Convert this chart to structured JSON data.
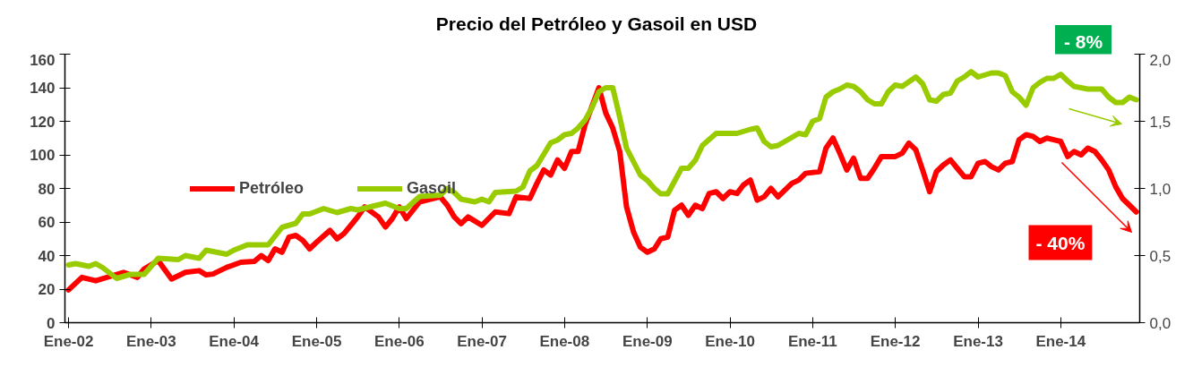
{
  "chart_data": {
    "type": "line",
    "title": "Precio del Petróleo y Gasoil en USD",
    "xlim": [
      "2001-12-16",
      "2014-12-16"
    ],
    "xticks": [
      {
        "value": "2002-01",
        "label": "Ene-02"
      },
      {
        "value": "2003-01",
        "label": "Ene-03"
      },
      {
        "value": "2004-01",
        "label": "Ene-04"
      },
      {
        "value": "2005-01",
        "label": "Ene-05"
      },
      {
        "value": "2006-01",
        "label": "Ene-06"
      },
      {
        "value": "2007-01",
        "label": "Ene-07"
      },
      {
        "value": "2008-01",
        "label": "Ene-08"
      },
      {
        "value": "2009-01",
        "label": "Ene-09"
      },
      {
        "value": "2010-01",
        "label": "Ene-10"
      },
      {
        "value": "2011-01",
        "label": "Ene-11"
      },
      {
        "value": "2012-01",
        "label": "Ene-12"
      },
      {
        "value": "2013-01",
        "label": "Ene-13"
      },
      {
        "value": "2014-01",
        "label": "Ene-14"
      }
    ],
    "ylim": [
      0,
      160
    ],
    "yticks": [
      0,
      20,
      40,
      60,
      80,
      100,
      120,
      140,
      160
    ],
    "y2lim": [
      0,
      2
    ],
    "y2ticks": [
      {
        "value": 0,
        "label": "0,0"
      },
      {
        "value": 0.5,
        "label": "0,5"
      },
      {
        "value": 1,
        "label": "1,0"
      },
      {
        "value": 1.5,
        "label": "1,5"
      },
      {
        "value": 2,
        "label": "2,0"
      }
    ],
    "grid": false,
    "legend": "left",
    "line_style": "solid",
    "annotations": [
      "- 8%",
      "- 40%"
    ],
    "series": [
      {
        "name": "Petróleo",
        "color": "#ff0000",
        "x": [
          "2002-01",
          "2002-03",
          "2002-05",
          "2002-09",
          "2002-11",
          "2002-12",
          "2003-02",
          "2003-04",
          "2003-06",
          "2003-08",
          "2003-09",
          "2003-10",
          "2003-12",
          "2004-02",
          "2004-04",
          "2004-05",
          "2004-06",
          "2004-07",
          "2004-08",
          "2004-09",
          "2004-10",
          "2004-11",
          "2004-12",
          "2005-01",
          "2005-03",
          "2005-04",
          "2005-05",
          "2005-06",
          "2005-07",
          "2005-08",
          "2005-10",
          "2005-11",
          "2005-12",
          "2006-01",
          "2006-02",
          "2006-04",
          "2006-07",
          "2006-08",
          "2006-09",
          "2006-10",
          "2006-11",
          "2007-01",
          "2007-03",
          "2007-05",
          "2007-06",
          "2007-08",
          "2007-09",
          "2007-10",
          "2007-11",
          "2007-12",
          "2008-01",
          "2008-02",
          "2008-03",
          "2008-04",
          "2008-06",
          "2008-07",
          "2008-08",
          "2008-09",
          "2008-10",
          "2008-11",
          "2008-12",
          "2009-01",
          "2009-02",
          "2009-03",
          "2009-04",
          "2009-05",
          "2009-06",
          "2009-07",
          "2009-08",
          "2009-09",
          "2009-10",
          "2009-11",
          "2009-12",
          "2010-01",
          "2010-02",
          "2010-03",
          "2010-04",
          "2010-05",
          "2010-06",
          "2010-07",
          "2010-08",
          "2010-10",
          "2010-11",
          "2010-12",
          "2011-02",
          "2011-03",
          "2011-04",
          "2011-05",
          "2011-06",
          "2011-07",
          "2011-08",
          "2011-09",
          "2011-10",
          "2011-11",
          "2012-01",
          "2012-02",
          "2012-03",
          "2012-04",
          "2012-05",
          "2012-06",
          "2012-07",
          "2012-08",
          "2012-09",
          "2012-10",
          "2012-11",
          "2012-12",
          "2013-01",
          "2013-02",
          "2013-03",
          "2013-04",
          "2013-05",
          "2013-06",
          "2013-07",
          "2013-08",
          "2013-09",
          "2013-10",
          "2013-11",
          "2013-12",
          "2014-01",
          "2014-02",
          "2014-03",
          "2014-04",
          "2014-05",
          "2014-06",
          "2014-07",
          "2014-08",
          "2014-09",
          "2014-10",
          "2014-12"
        ],
        "values": [
          19.5,
          27,
          25,
          30,
          27,
          32,
          37,
          26,
          30,
          31,
          28.5,
          29,
          33,
          36,
          36.5,
          40,
          37,
          44,
          42,
          51,
          52,
          49,
          44,
          48,
          55,
          50,
          53,
          58,
          63,
          69,
          63,
          57,
          62,
          69,
          62,
          72,
          75,
          70,
          63,
          59,
          63,
          58,
          66,
          65,
          75,
          74,
          83,
          91,
          88,
          97,
          92,
          102,
          102,
          118,
          140,
          125,
          116,
          102,
          69,
          54,
          45,
          42,
          44,
          50,
          51,
          67,
          70,
          64,
          70,
          68,
          77,
          78,
          74,
          78,
          77,
          82,
          85,
          73,
          75,
          80,
          75,
          83,
          85,
          89,
          90,
          104,
          110,
          101,
          91,
          98,
          86,
          86,
          92,
          99,
          99,
          101,
          107,
          103,
          91,
          78,
          90,
          94,
          97,
          92,
          87,
          87,
          95,
          96,
          93,
          91,
          95,
          96,
          109,
          112,
          111,
          108,
          110,
          109,
          108,
          99,
          102,
          100,
          104,
          102,
          97,
          91,
          81,
          74,
          66
        ]
      },
      {
        "name": "Gasoil",
        "color": "#99cc00",
        "axis": "y2",
        "x": [
          "2002-01",
          "2002-02",
          "2002-04",
          "2002-05",
          "2002-06",
          "2002-08",
          "2002-10",
          "2002-12",
          "2003-02",
          "2003-05",
          "2003-06",
          "2003-08",
          "2003-09",
          "2003-12",
          "2004-01",
          "2004-03",
          "2004-06",
          "2004-08",
          "2004-10",
          "2004-11",
          "2004-12",
          "2005-02",
          "2005-04",
          "2005-06",
          "2005-07",
          "2005-11",
          "2006-01",
          "2006-02",
          "2006-04",
          "2006-07",
          "2006-08",
          "2006-09",
          "2006-10",
          "2006-12",
          "2007-01",
          "2007-02",
          "2007-03",
          "2007-06",
          "2007-07",
          "2007-08",
          "2007-09",
          "2007-11",
          "2007-12",
          "2008-01",
          "2008-02",
          "2008-03",
          "2008-04",
          "2008-05",
          "2008-06",
          "2008-07",
          "2008-08",
          "2008-09",
          "2008-10",
          "2008-12",
          "2009-01",
          "2009-02",
          "2009-03",
          "2009-04",
          "2009-06",
          "2009-07",
          "2009-08",
          "2009-09",
          "2009-11",
          "2010-01",
          "2010-02",
          "2010-04",
          "2010-05",
          "2010-06",
          "2010-07",
          "2010-08",
          "2010-11",
          "2010-12",
          "2011-01",
          "2011-02",
          "2011-03",
          "2011-04",
          "2011-05",
          "2011-06",
          "2011-07",
          "2011-08",
          "2011-09",
          "2011-10",
          "2011-11",
          "2011-12",
          "2012-01",
          "2012-02",
          "2012-04",
          "2012-05",
          "2012-06",
          "2012-07",
          "2012-08",
          "2012-09",
          "2012-10",
          "2012-11",
          "2012-12",
          "2013-01",
          "2013-03",
          "2013-04",
          "2013-05",
          "2013-06",
          "2013-07",
          "2013-08",
          "2013-09",
          "2013-10",
          "2013-11",
          "2013-12",
          "2014-01",
          "2014-02",
          "2014-03",
          "2014-05",
          "2014-07",
          "2014-08",
          "2014-09",
          "2014-10",
          "2014-11",
          "2014-12"
        ],
        "values": [
          0.43,
          0.44,
          0.42,
          0.44,
          0.41,
          0.33,
          0.36,
          0.36,
          0.48,
          0.47,
          0.5,
          0.48,
          0.54,
          0.51,
          0.54,
          0.58,
          0.58,
          0.71,
          0.74,
          0.81,
          0.81,
          0.85,
          0.82,
          0.85,
          0.84,
          0.89,
          0.85,
          0.85,
          0.94,
          0.95,
          1.0,
          0.97,
          0.92,
          0.9,
          0.92,
          0.9,
          0.97,
          0.98,
          1.01,
          1.13,
          1.17,
          1.34,
          1.36,
          1.4,
          1.41,
          1.45,
          1.51,
          1.6,
          1.72,
          1.75,
          1.75,
          1.53,
          1.3,
          1.1,
          1.06,
          1.0,
          0.96,
          0.96,
          1.15,
          1.15,
          1.21,
          1.32,
          1.41,
          1.41,
          1.41,
          1.44,
          1.45,
          1.35,
          1.31,
          1.32,
          1.41,
          1.4,
          1.5,
          1.52,
          1.68,
          1.72,
          1.74,
          1.77,
          1.76,
          1.72,
          1.66,
          1.63,
          1.63,
          1.72,
          1.77,
          1.76,
          1.83,
          1.78,
          1.66,
          1.65,
          1.7,
          1.71,
          1.8,
          1.83,
          1.87,
          1.83,
          1.86,
          1.86,
          1.84,
          1.72,
          1.68,
          1.62,
          1.75,
          1.79,
          1.82,
          1.82,
          1.85,
          1.8,
          1.76,
          1.74,
          1.74,
          1.68,
          1.64,
          1.64,
          1.68,
          1.66
        ]
      }
    ]
  }
}
